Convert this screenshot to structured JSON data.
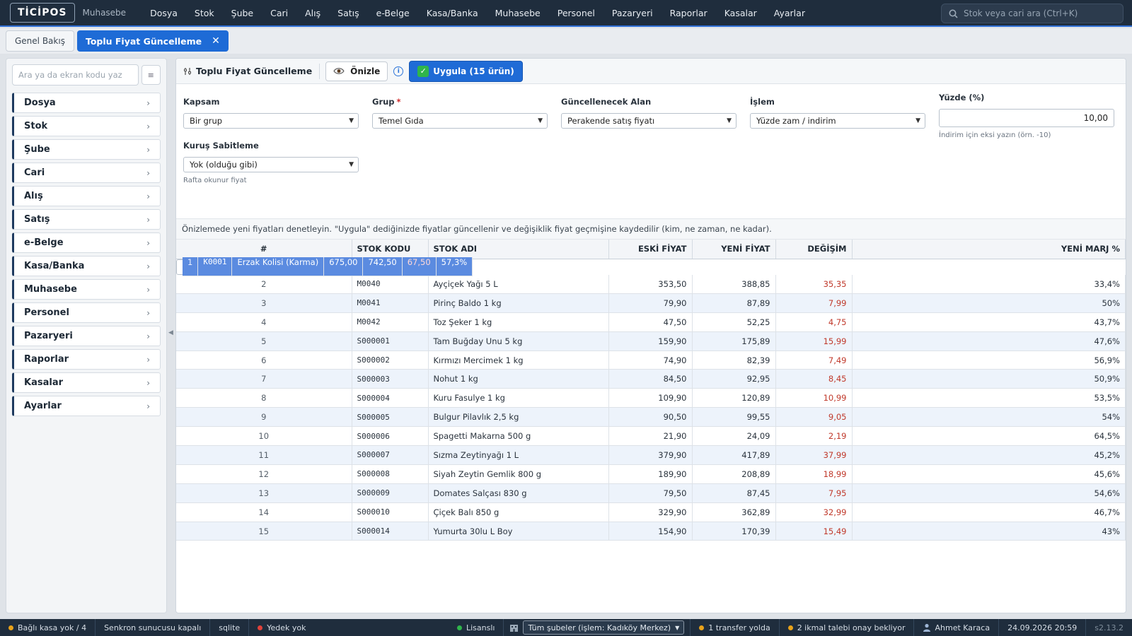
{
  "app": {
    "logo": "TİCİPOS",
    "subtitle": "Muhasebe"
  },
  "menu": [
    "Dosya",
    "Stok",
    "Şube",
    "Cari",
    "Alış",
    "Satış",
    "e-Belge",
    "Kasa/Banka",
    "Muhasebe",
    "Personel",
    "Pazaryeri",
    "Raporlar",
    "Kasalar",
    "Ayarlar"
  ],
  "search": {
    "placeholder": "Stok veya cari ara (Ctrl+K)"
  },
  "tabs": {
    "overview": "Genel Bakış",
    "active": "Toplu Fiyat Güncelleme",
    "close_glyph": "✕"
  },
  "sidebar": {
    "search_placeholder": "Ara ya da ekran kodu yaz",
    "filter_glyph": "≡",
    "items": [
      "Dosya",
      "Stok",
      "Şube",
      "Cari",
      "Alış",
      "Satış",
      "e-Belge",
      "Kasa/Banka",
      "Muhasebe",
      "Personel",
      "Pazaryeri",
      "Raporlar",
      "Kasalar",
      "Ayarlar"
    ]
  },
  "toolbar": {
    "title": "Toplu Fiyat Güncelleme",
    "preview_label": "Önizle",
    "info_glyph": "i",
    "apply_label": "Uygula (15 ürün)"
  },
  "form": {
    "scope": {
      "label": "Kapsam",
      "value": "Bir grup"
    },
    "group": {
      "label": "Grup",
      "required_mark": "*",
      "value": "Temel Gıda"
    },
    "field": {
      "label": "Güncellenecek Alan",
      "value": "Perakende satış fiyatı"
    },
    "operation": {
      "label": "İşlem",
      "value": "Yüzde zam / indirim"
    },
    "percent": {
      "label": "Yüzde (%)",
      "value": "10,00",
      "hint": "İndirim için eksi yazın (örn. -10)"
    },
    "rounding": {
      "label": "Kuruş Sabitleme",
      "value": "Yok (olduğu gibi)",
      "hint": "Rafta okunur fiyat"
    }
  },
  "note": "Önizlemede yeni fiyatları denetleyin. \"Uygula\" dediğinizde fiyatlar güncellenir ve değişiklik fiyat geçmişine kaydedilir (kim, ne zaman, ne kadar).",
  "table": {
    "columns": [
      "#",
      "STOK KODU",
      "STOK ADI",
      "ESKİ FİYAT",
      "YENİ FİYAT",
      "DEĞİŞİM",
      "YENİ MARJ %"
    ],
    "rows": [
      [
        "1",
        "K0001",
        "Erzak Kolisi (Karma)",
        "675,00",
        "742,50",
        "67,50",
        "57,3%"
      ],
      [
        "2",
        "M0040",
        "Ayçiçek Yağı 5 L",
        "353,50",
        "388,85",
        "35,35",
        "33,4%"
      ],
      [
        "3",
        "M0041",
        "Pirinç Baldo 1 kg",
        "79,90",
        "87,89",
        "7,99",
        "50%"
      ],
      [
        "4",
        "M0042",
        "Toz Şeker 1 kg",
        "47,50",
        "52,25",
        "4,75",
        "43,7%"
      ],
      [
        "5",
        "S000001",
        "Tam Buğday Unu 5 kg",
        "159,90",
        "175,89",
        "15,99",
        "47,6%"
      ],
      [
        "6",
        "S000002",
        "Kırmızı Mercimek 1 kg",
        "74,90",
        "82,39",
        "7,49",
        "56,9%"
      ],
      [
        "7",
        "S000003",
        "Nohut 1 kg",
        "84,50",
        "92,95",
        "8,45",
        "50,9%"
      ],
      [
        "8",
        "S000004",
        "Kuru Fasulye 1 kg",
        "109,90",
        "120,89",
        "10,99",
        "53,5%"
      ],
      [
        "9",
        "S000005",
        "Bulgur Pilavlık 2,5 kg",
        "90,50",
        "99,55",
        "9,05",
        "54%"
      ],
      [
        "10",
        "S000006",
        "Spagetti Makarna 500 g",
        "21,90",
        "24,09",
        "2,19",
        "64,5%"
      ],
      [
        "11",
        "S000007",
        "Sızma Zeytinyağı 1 L",
        "379,90",
        "417,89",
        "37,99",
        "45,2%"
      ],
      [
        "12",
        "S000008",
        "Siyah Zeytin Gemlik 800 g",
        "189,90",
        "208,89",
        "18,99",
        "45,6%"
      ],
      [
        "13",
        "S000009",
        "Domates Salçası 830 g",
        "79,50",
        "87,45",
        "7,95",
        "54,6%"
      ],
      [
        "14",
        "S000010",
        "Çiçek Balı 850 g",
        "329,90",
        "362,89",
        "32,99",
        "46,7%"
      ],
      [
        "15",
        "S000014",
        "Yumurta 30lu L Boy",
        "154,90",
        "170,39",
        "15,49",
        "43%"
      ]
    ]
  },
  "status": {
    "connected_till": "Bağlı kasa yok / 4",
    "sync": "Senkron sunucusu kapalı",
    "db": "sqlite",
    "backup": "Yedek yok",
    "license": "Lisanslı",
    "branch_select": "Tüm şubeler (işlem: Kadıköy Merkez)",
    "transfer": "1 transfer yolda",
    "supply": "2 ikmal talebi onay bekliyor",
    "user": "Ahmet Karaca",
    "datetime": "24.09.2026 20:59",
    "version": "s2.13.2"
  },
  "colors": {
    "accent": "#1e6bd6",
    "topbar": "#1f2d3d",
    "selected_row": "#5b8be0",
    "change_red": "#c0392b",
    "ok_green": "#2fb54b",
    "warn_orange": "#e8a21a",
    "error_red": "#e0413a"
  }
}
